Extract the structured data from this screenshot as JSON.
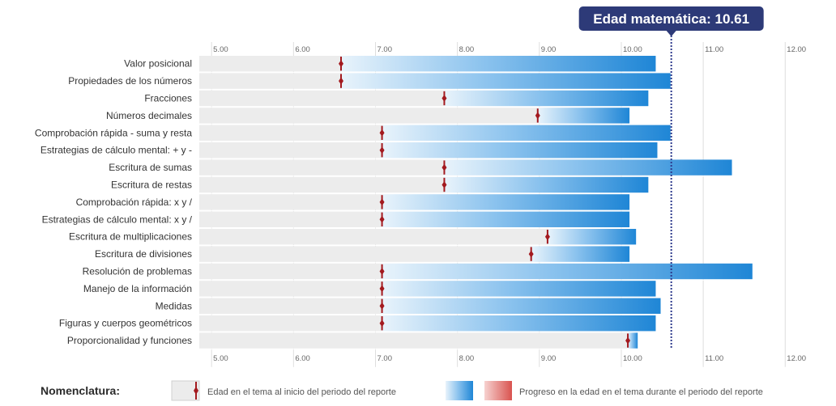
{
  "math_age_badge": {
    "label": "Edad matemática: 10.61",
    "value": 10.61
  },
  "legend": {
    "title": "Nomenclatura:",
    "start_label": "Edad en el tema al inicio del periodo del reporte",
    "progress_label": "Progreso en la edad en el tema durante el periodo del reporte"
  },
  "colors": {
    "progress_blue": "#1f86d6",
    "progress_light": "#e4f1fb",
    "regress_red": "#d9534f",
    "marker": "#a31a1f",
    "badge_bg": "#2d3a78",
    "reference_line": "#2d3a8c",
    "row_bg": "#ececec"
  },
  "chart_data": {
    "type": "bar",
    "orientation": "horizontal",
    "title": "",
    "xlabel": "",
    "ylabel": "",
    "xlim": [
      4.85,
      12.62
    ],
    "x_ticks": [
      5,
      6,
      7,
      8,
      9,
      10,
      11,
      12
    ],
    "x_tick_labels": [
      "5.00",
      "6.00",
      "7.00",
      "8.00",
      "9.00",
      "10.00",
      "11.00",
      "12.00"
    ],
    "reference_line": 10.61,
    "categories": [
      "Valor posicional",
      "Propiedades de los números",
      "Fracciones",
      "Números decimales",
      "Comprobación rápida - suma y resta",
      "Estrategias de cálculo mental: + y -",
      "Escritura de sumas",
      "Escritura de restas",
      "Comprobación rápida: x y /",
      "Estrategias de cálculo mental: x y /",
      "Escritura de multiplicaciones",
      "Escritura de divisiones",
      "Resolución de problemas",
      "Manejo de la información",
      "Medidas",
      "Figuras y cuerpos geométricos",
      "Proporcionalidad y funciones"
    ],
    "series": [
      {
        "name": "Edad en el tema al inicio del periodo del reporte",
        "values": [
          6.58,
          6.58,
          7.84,
          8.98,
          7.08,
          7.08,
          7.84,
          7.84,
          7.08,
          7.08,
          9.1,
          8.9,
          7.08,
          7.08,
          7.08,
          7.08,
          10.08
        ]
      },
      {
        "name": "Progreso en la edad en el tema durante el periodo del reporte",
        "values": [
          10.42,
          10.6,
          10.33,
          10.1,
          10.6,
          10.44,
          11.35,
          10.33,
          10.1,
          10.1,
          10.18,
          10.1,
          11.6,
          10.42,
          10.48,
          10.42,
          10.2
        ]
      }
    ]
  }
}
